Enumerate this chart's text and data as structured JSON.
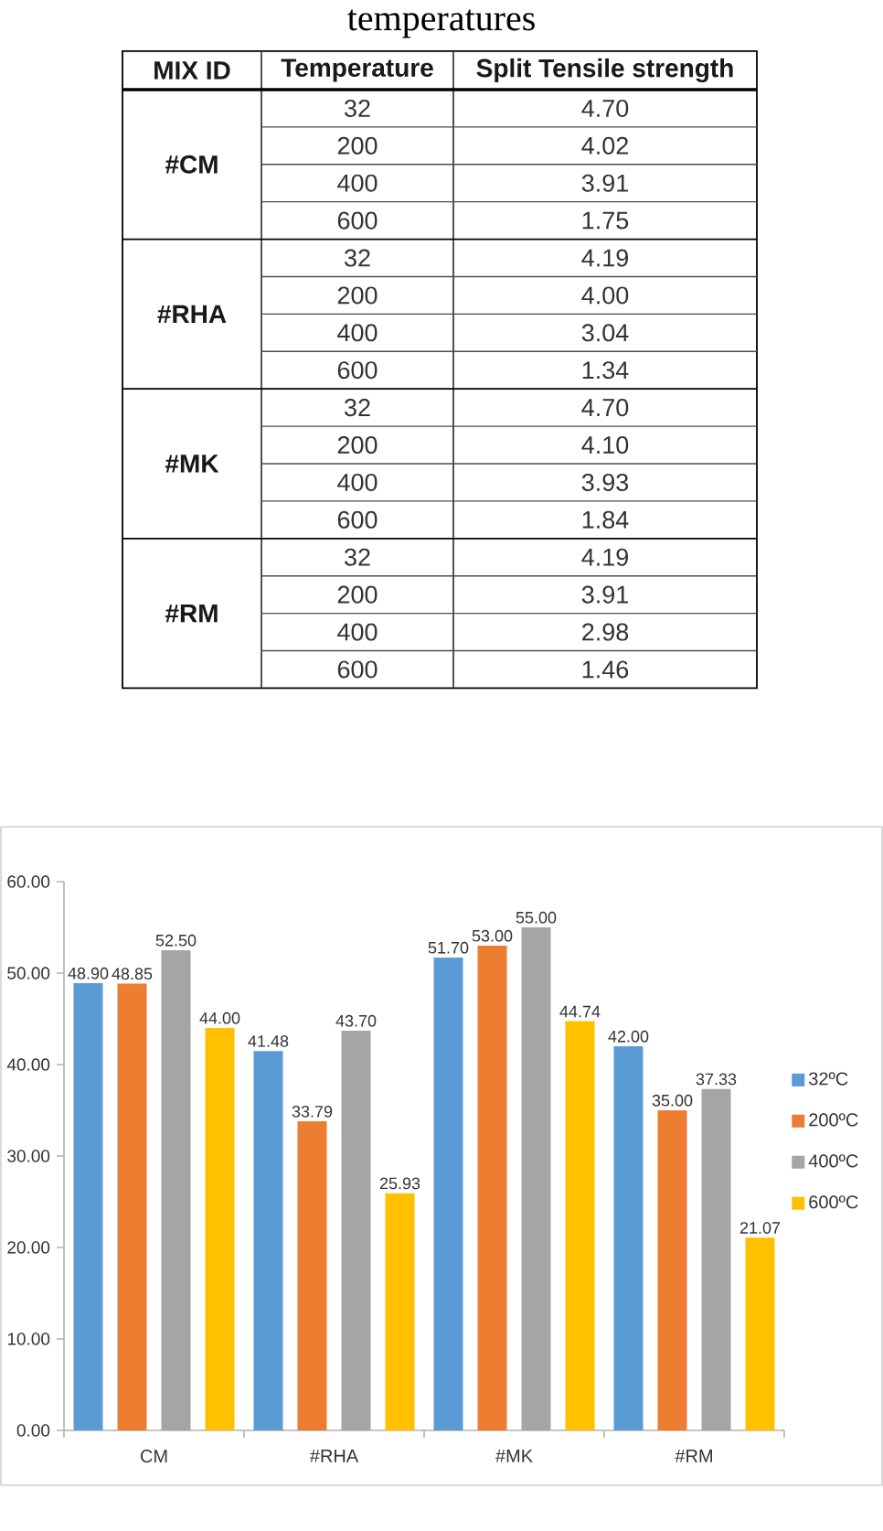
{
  "chart_data": [
    {
      "type": "other",
      "title": "temperatures",
      "legend_title": "MIX ID",
      "xlabel": "Temperature",
      "ylabel": "Split Tensile strength",
      "categories": [
        "32",
        "200",
        "400",
        "600"
      ],
      "series": [
        {
          "name": "#CM",
          "values": [
            4.7,
            4.02,
            3.91,
            1.75
          ],
          "value_labels": [
            "4.70",
            "4.02",
            "3.91",
            "1.75"
          ]
        },
        {
          "name": "#RHA",
          "values": [
            4.19,
            4.0,
            3.04,
            1.34
          ],
          "value_labels": [
            "4.19",
            "4.00",
            "3.04",
            "1.34"
          ]
        },
        {
          "name": "#MK",
          "values": [
            4.7,
            4.1,
            3.93,
            1.84
          ],
          "value_labels": [
            "4.70",
            "4.10",
            "3.93",
            "1.84"
          ]
        },
        {
          "name": "#RM",
          "values": [
            4.19,
            3.91,
            2.98,
            1.46
          ],
          "value_labels": [
            "4.19",
            "3.91",
            "2.98",
            "1.46"
          ]
        }
      ]
    },
    {
      "type": "bar",
      "categories": [
        "CM",
        "#RHA",
        "#MK",
        "#RM"
      ],
      "ylim": [
        0,
        60
      ],
      "yticks": [
        {
          "value": 0,
          "label": "0.00"
        },
        {
          "value": 10,
          "label": "10.00"
        },
        {
          "value": 20,
          "label": "20.00"
        },
        {
          "value": 30,
          "label": "30.00"
        },
        {
          "value": 40,
          "label": "40.00"
        },
        {
          "value": 50,
          "label": "50.00"
        },
        {
          "value": 60,
          "label": "60.00"
        }
      ],
      "series": [
        {
          "name": "32ºC",
          "color": "#5b9bd5",
          "values": [
            48.9,
            41.48,
            51.7,
            42.0
          ],
          "value_labels": [
            "48.90",
            "41.48",
            "51.70",
            "42.00"
          ]
        },
        {
          "name": "200ºC",
          "color": "#ed7d31",
          "values": [
            48.85,
            33.79,
            53.0,
            35.0
          ],
          "value_labels": [
            "48.85",
            "33.79",
            "53.00",
            "35.00"
          ]
        },
        {
          "name": "400ºC",
          "color": "#a5a5a5",
          "values": [
            52.5,
            43.7,
            55.0,
            37.33
          ],
          "value_labels": [
            "52.50",
            "43.70",
            "55.00",
            "37.33"
          ]
        },
        {
          "name": "600ºC",
          "color": "#ffc000",
          "values": [
            44.0,
            25.93,
            44.74,
            21.07
          ],
          "value_labels": [
            "44.00",
            "25.93",
            "44.74",
            "21.07"
          ]
        }
      ],
      "legend": "right"
    }
  ]
}
